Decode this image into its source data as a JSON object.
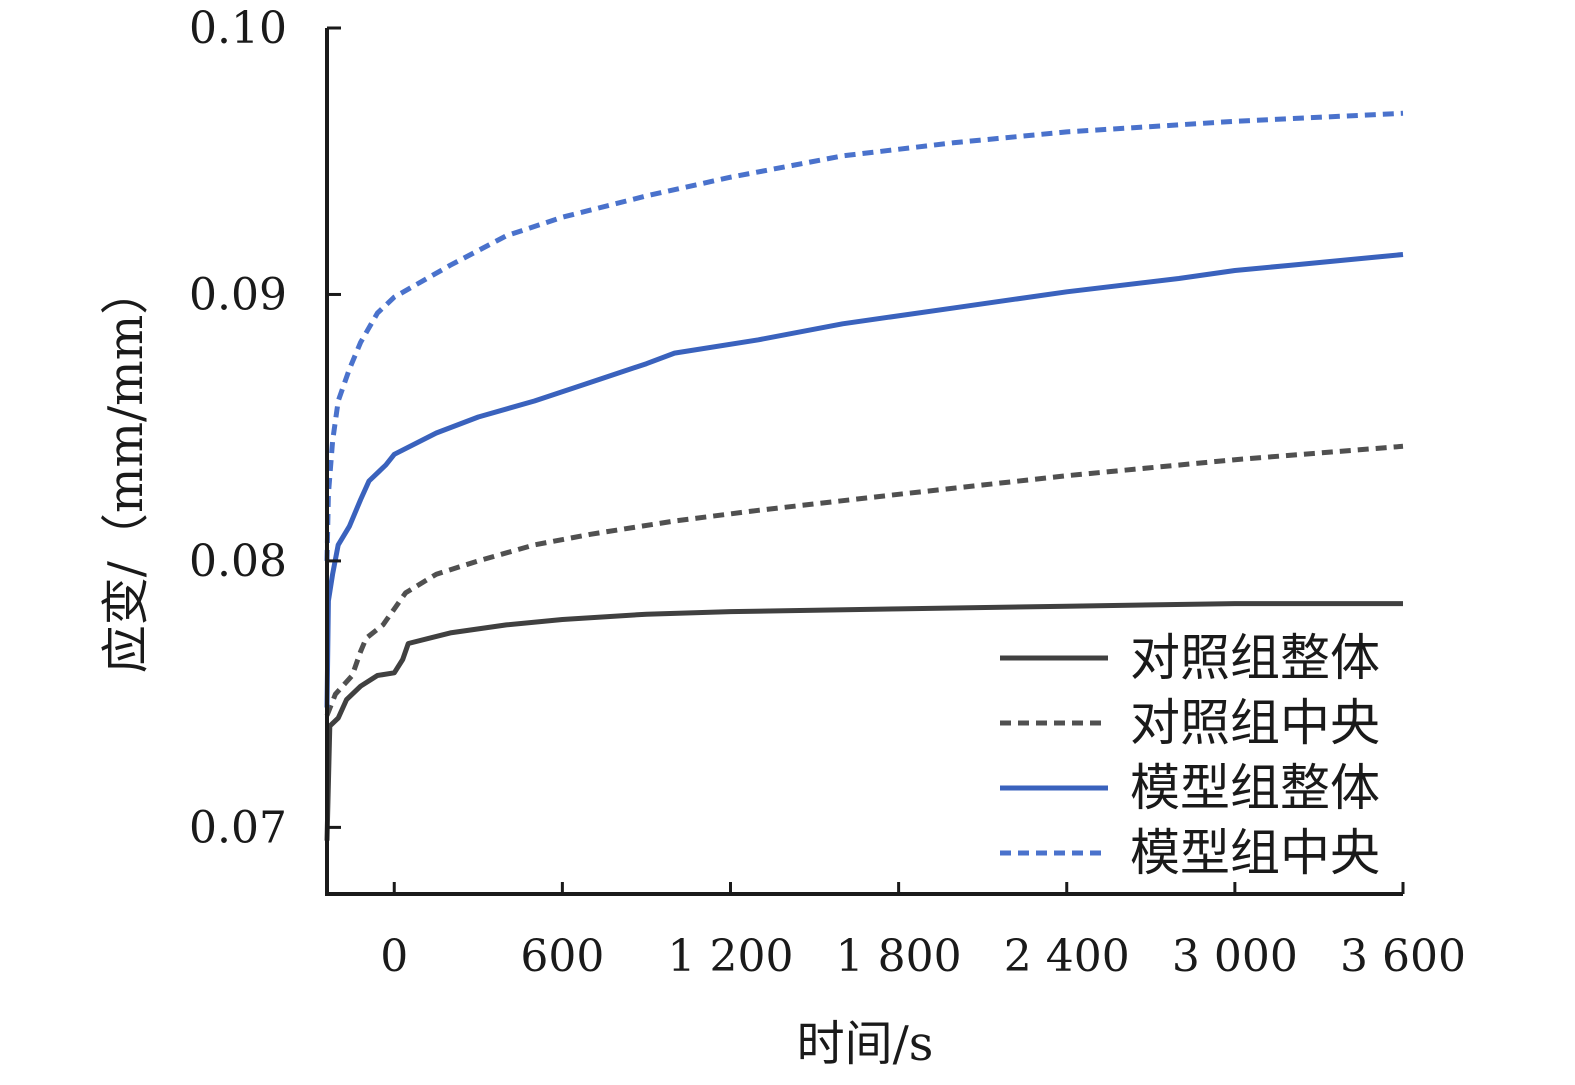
{
  "chart_data": {
    "type": "line",
    "title": "",
    "xlabel": "时间/s",
    "ylabel": "应变/（mm/mm）",
    "xlim": [
      -240,
      3600
    ],
    "ylim": [
      0.0675,
      0.1
    ],
    "x_ticks": [
      0,
      600,
      1200,
      1800,
      2400,
      3000,
      3600
    ],
    "x_tick_labels": [
      "0",
      "600",
      "1 200",
      "1 800",
      "2 400",
      "3 000",
      "3 600"
    ],
    "y_ticks": [
      0.07,
      0.08,
      0.09,
      0.1
    ],
    "y_tick_labels": [
      "0.07",
      "0.08",
      "0.09",
      "0.10"
    ],
    "grid": false,
    "legend_position": "bottom-right",
    "series": [
      {
        "name": "对照组整体",
        "color": "#404040",
        "dash": "solid",
        "points": [
          [
            -240,
            0.0695
          ],
          [
            -230,
            0.0738
          ],
          [
            -200,
            0.0741
          ],
          [
            -170,
            0.0748
          ],
          [
            -120,
            0.0753
          ],
          [
            -60,
            0.0757
          ],
          [
            0,
            0.0758
          ],
          [
            30,
            0.0763
          ],
          [
            50,
            0.0769
          ],
          [
            200,
            0.0773
          ],
          [
            400,
            0.0776
          ],
          [
            600,
            0.0778
          ],
          [
            900,
            0.078
          ],
          [
            1200,
            0.0781
          ],
          [
            1800,
            0.0782
          ],
          [
            2400,
            0.0783
          ],
          [
            3000,
            0.0784
          ],
          [
            3600,
            0.0784
          ]
        ]
      },
      {
        "name": "对照组中央",
        "color": "#505050",
        "dash": "dashed",
        "points": [
          [
            -240,
            0.0742
          ],
          [
            -210,
            0.075
          ],
          [
            -150,
            0.0757
          ],
          [
            -120,
            0.0766
          ],
          [
            -100,
            0.0771
          ],
          [
            -40,
            0.0776
          ],
          [
            0,
            0.0782
          ],
          [
            40,
            0.0788
          ],
          [
            150,
            0.0795
          ],
          [
            300,
            0.08
          ],
          [
            500,
            0.0806
          ],
          [
            700,
            0.081
          ],
          [
            1000,
            0.0815
          ],
          [
            1300,
            0.0819
          ],
          [
            1800,
            0.0825
          ],
          [
            2400,
            0.0832
          ],
          [
            3000,
            0.0838
          ],
          [
            3600,
            0.0843
          ]
        ]
      },
      {
        "name": "模型组整体",
        "color": "#3a62bd",
        "dash": "solid",
        "points": [
          [
            -240,
            0.0745
          ],
          [
            -235,
            0.0785
          ],
          [
            -220,
            0.0795
          ],
          [
            -200,
            0.0806
          ],
          [
            -160,
            0.0813
          ],
          [
            -120,
            0.0823
          ],
          [
            -90,
            0.083
          ],
          [
            -30,
            0.0836
          ],
          [
            0,
            0.084
          ],
          [
            150,
            0.0848
          ],
          [
            300,
            0.0854
          ],
          [
            500,
            0.086
          ],
          [
            700,
            0.0867
          ],
          [
            900,
            0.0874
          ],
          [
            1000,
            0.0878
          ],
          [
            1300,
            0.0883
          ],
          [
            1600,
            0.0889
          ],
          [
            2000,
            0.0895
          ],
          [
            2400,
            0.0901
          ],
          [
            2800,
            0.0906
          ],
          [
            3000,
            0.0909
          ],
          [
            3200,
            0.0911
          ],
          [
            3600,
            0.0915
          ]
        ]
      },
      {
        "name": "模型组中央",
        "color": "#4a72cc",
        "dash": "dashed",
        "points": [
          [
            -240,
            0.08
          ],
          [
            -235,
            0.0825
          ],
          [
            -220,
            0.0845
          ],
          [
            -200,
            0.086
          ],
          [
            -160,
            0.0872
          ],
          [
            -120,
            0.0882
          ],
          [
            -60,
            0.0893
          ],
          [
            0,
            0.0899
          ],
          [
            200,
            0.0911
          ],
          [
            400,
            0.0922
          ],
          [
            600,
            0.0929
          ],
          [
            900,
            0.0937
          ],
          [
            1200,
            0.0944
          ],
          [
            1600,
            0.0952
          ],
          [
            2000,
            0.0957
          ],
          [
            2400,
            0.0961
          ],
          [
            3000,
            0.0965
          ],
          [
            3600,
            0.0968
          ]
        ]
      }
    ]
  }
}
